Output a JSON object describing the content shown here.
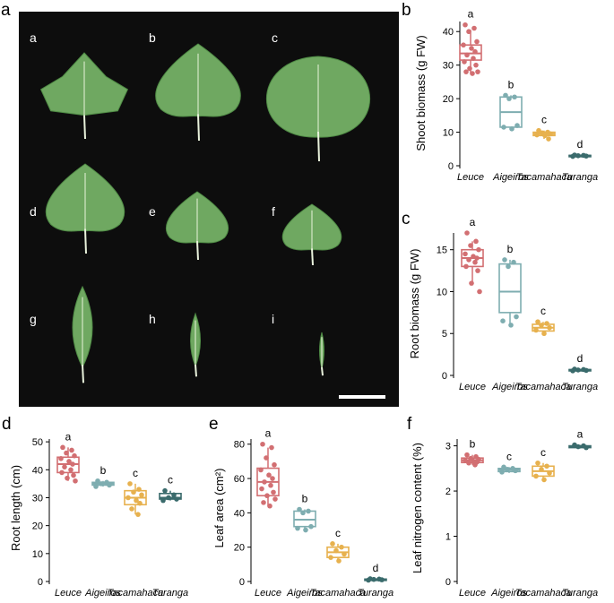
{
  "photo": {
    "leaf_labels": [
      "a",
      "b",
      "c",
      "d",
      "e",
      "f",
      "g",
      "h",
      "i"
    ],
    "leaf_color": "#6fa861",
    "leaf_color_dark": "#4f8b45",
    "background_color": "#0d0d0d"
  },
  "panel_labels": [
    "a",
    "b",
    "c",
    "d",
    "e",
    "f"
  ],
  "colors": [
    "#d26f72",
    "#7eadb0",
    "#e7b14e",
    "#3a6b6c"
  ],
  "chart_data": [
    {
      "type": "box",
      "panel": "b",
      "categories": [
        "Leuce",
        "Aigeiros",
        "Tacamahaca",
        "Turanga"
      ],
      "ylabel": "Shoot biomass (g FW)",
      "ylim": [
        0,
        43
      ],
      "yticks": [
        0,
        10,
        20,
        30,
        40
      ],
      "letters": [
        "a",
        "b",
        "c",
        "d"
      ],
      "boxes": [
        {
          "min": 27.5,
          "q1": 31.5,
          "median": 33.5,
          "q3": 36,
          "max": 40.5
        },
        {
          "min": 11,
          "q1": 11.5,
          "median": 16,
          "q3": 20.5,
          "max": 21
        },
        {
          "min": 8,
          "q1": 9,
          "median": 9.5,
          "q3": 10,
          "max": 10.5
        },
        {
          "min": 2.7,
          "q1": 2.8,
          "median": 3,
          "q3": 3.1,
          "max": 3.2
        }
      ],
      "points": [
        [
          42,
          41,
          40,
          37,
          36,
          35,
          34,
          33,
          32,
          31,
          30,
          29,
          28,
          28,
          27.5
        ],
        [
          21,
          20.5,
          20,
          12,
          11.5,
          11
        ],
        [
          10.5,
          10,
          9.8,
          9.5,
          9.2,
          9,
          8
        ],
        [
          3.2,
          3.1,
          3,
          2.9,
          2.8
        ]
      ]
    },
    {
      "type": "box",
      "panel": "c",
      "categories": [
        "Leuce",
        "Aigeiros",
        "Tacamahaca",
        "Turanga"
      ],
      "ylabel": "Root biomass (g FW)",
      "ylim": [
        0,
        17
      ],
      "yticks": [
        0,
        5,
        10,
        15
      ],
      "letters": [
        "a",
        "b",
        "c",
        "d"
      ],
      "boxes": [
        {
          "min": 11,
          "q1": 13,
          "median": 14,
          "q3": 15,
          "max": 16
        },
        {
          "min": 6,
          "q1": 7.5,
          "median": 10,
          "q3": 13.3,
          "max": 13.8
        },
        {
          "min": 5,
          "q1": 5.3,
          "median": 5.7,
          "q3": 6.1,
          "max": 6.4
        },
        {
          "min": 0.55,
          "q1": 0.6,
          "median": 0.65,
          "q3": 0.7,
          "max": 0.75
        }
      ],
      "points": [
        [
          17,
          16,
          15.5,
          15,
          14.5,
          14.2,
          14,
          13.8,
          13.5,
          13,
          12.5,
          11,
          10
        ],
        [
          13.8,
          13.5,
          13,
          7,
          6.5,
          6
        ],
        [
          6.4,
          6.2,
          6,
          5.7,
          5.4,
          5
        ],
        [
          0.75,
          0.7,
          0.65,
          0.6,
          0.55
        ]
      ]
    },
    {
      "type": "box",
      "panel": "d",
      "categories": [
        "Leuce",
        "Aigeiros",
        "Tacamahaca",
        "Turanga"
      ],
      "ylabel": "Root length (cm)",
      "ylim": [
        0,
        51
      ],
      "yticks": [
        0,
        10,
        20,
        30,
        40,
        50
      ],
      "letters": [
        "a",
        "b",
        "c",
        "c"
      ],
      "boxes": [
        {
          "min": 36,
          "q1": 39,
          "median": 42,
          "q3": 44.5,
          "max": 48
        },
        {
          "min": 34,
          "q1": 34.5,
          "median": 35,
          "q3": 35.5,
          "max": 36
        },
        {
          "min": 24,
          "q1": 27.5,
          "median": 30,
          "q3": 32.5,
          "max": 35
        },
        {
          "min": 29,
          "q1": 29.5,
          "median": 30,
          "q3": 31.5,
          "max": 32.5
        }
      ],
      "points": [
        [
          48,
          47,
          46,
          45,
          44,
          43,
          42,
          41,
          40,
          39,
          38,
          37,
          36
        ],
        [
          36,
          35.5,
          35,
          34.5,
          34
        ],
        [
          35,
          33,
          32,
          31,
          30,
          29,
          28,
          26,
          24
        ],
        [
          32.5,
          31,
          30,
          29.5,
          29
        ]
      ]
    },
    {
      "type": "box",
      "panel": "e",
      "categories": [
        "Leuce",
        "Aigeiros",
        "Tacamahaca",
        "Turanga"
      ],
      "ylabel": "Leaf area (cm²)",
      "ylim": [
        0,
        83
      ],
      "yticks": [
        0,
        20,
        40,
        60,
        80
      ],
      "letters": [
        "a",
        "b",
        "c",
        "d"
      ],
      "boxes": [
        {
          "min": 44,
          "q1": 50,
          "median": 58,
          "q3": 66,
          "max": 78
        },
        {
          "min": 30,
          "q1": 32,
          "median": 36,
          "q3": 41,
          "max": 42
        },
        {
          "min": 12,
          "q1": 14,
          "median": 17,
          "q3": 20,
          "max": 22
        },
        {
          "min": 0.8,
          "q1": 1,
          "median": 1.2,
          "q3": 1.4,
          "max": 1.6
        }
      ],
      "points": [
        [
          80,
          78,
          72,
          68,
          65,
          62,
          60,
          58,
          56,
          54,
          52,
          50,
          48,
          46,
          44
        ],
        [
          42,
          41,
          40,
          32,
          31,
          30
        ],
        [
          22,
          20,
          18,
          16,
          14,
          12
        ],
        [
          1.6,
          1.4,
          1.2,
          1,
          0.8
        ]
      ]
    },
    {
      "type": "box",
      "panel": "f",
      "categories": [
        "Leuce",
        "Aigeiros",
        "Tacamahaca",
        "Turanga"
      ],
      "ylabel": "Leaf nitrogen content (%)",
      "ylim": [
        0,
        3.15
      ],
      "yticks": [
        0,
        1,
        2,
        3
      ],
      "letters": [
        "b",
        "c",
        "c",
        "a"
      ],
      "boxes": [
        {
          "min": 2.58,
          "q1": 2.63,
          "median": 2.68,
          "q3": 2.73,
          "max": 2.8
        },
        {
          "min": 2.4,
          "q1": 2.43,
          "median": 2.47,
          "q3": 2.5,
          "max": 2.53
        },
        {
          "min": 2.25,
          "q1": 2.33,
          "median": 2.44,
          "q3": 2.55,
          "max": 2.62
        },
        {
          "min": 2.94,
          "q1": 2.96,
          "median": 2.98,
          "q3": 3.0,
          "max": 3.02
        }
      ],
      "points": [
        [
          2.8,
          2.76,
          2.72,
          2.7,
          2.68,
          2.66,
          2.64,
          2.62,
          2.58
        ],
        [
          2.53,
          2.5,
          2.48,
          2.45,
          2.42
        ],
        [
          2.62,
          2.55,
          2.48,
          2.4,
          2.33,
          2.25
        ],
        [
          3.02,
          3.0,
          2.98,
          2.96
        ]
      ]
    }
  ]
}
